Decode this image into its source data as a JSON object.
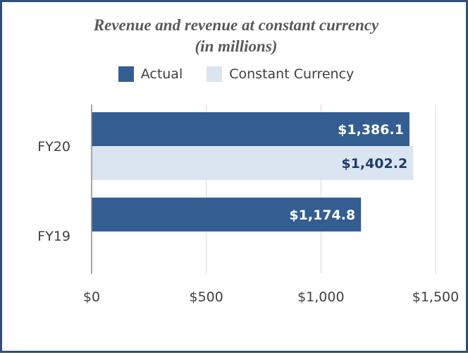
{
  "chart_data": {
    "type": "bar",
    "orientation": "horizontal",
    "title_line1": "Revenue and revenue at constant currency",
    "title_line2": "(in millions)",
    "categories": [
      "FY20",
      "FY19"
    ],
    "series": [
      {
        "name": "Actual",
        "values": [
          1386.1,
          1174.8
        ],
        "labels": [
          "$1,386.1",
          "$1,174.8"
        ],
        "color": "#345e91",
        "label_color": "#ffffff"
      },
      {
        "name": "Constant Currency",
        "values": [
          1402.2,
          null
        ],
        "labels": [
          "$1,402.2",
          ""
        ],
        "color": "#dbe5f1",
        "label_color": "#1f3d66"
      }
    ],
    "xlim": [
      0,
      1500
    ],
    "x_ticks": [
      0,
      500,
      1000,
      1500
    ],
    "x_tick_labels": [
      "$0",
      "$500",
      "$1,000",
      "$1,500"
    ],
    "grid": true,
    "legend_position": "top"
  }
}
